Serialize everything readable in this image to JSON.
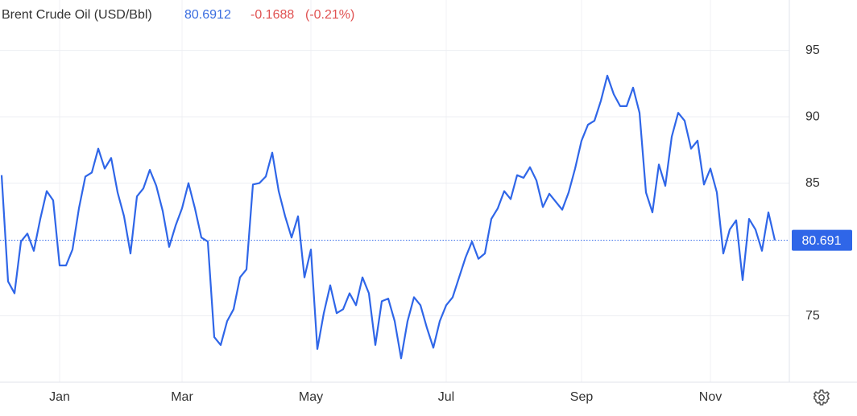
{
  "chart_data": {
    "type": "line",
    "title": "Brent Crude Oil (USD/Bbl)",
    "price": 80.6912,
    "change": -0.1688,
    "change_percent": "(-0.21%)",
    "current": 80.691,
    "categories": [
      null,
      null,
      null,
      null,
      null,
      null,
      null,
      null,
      null,
      "Jan",
      null,
      null,
      null,
      null,
      null,
      null,
      null,
      null,
      null,
      null,
      null,
      null,
      null,
      null,
      null,
      null,
      null,
      null,
      "Mar",
      null,
      null,
      null,
      null,
      null,
      null,
      null,
      null,
      null,
      null,
      null,
      null,
      null,
      null,
      null,
      null,
      null,
      null,
      null,
      "May",
      null,
      null,
      null,
      null,
      null,
      null,
      null,
      null,
      null,
      null,
      null,
      null,
      null,
      null,
      null,
      null,
      null,
      null,
      null,
      null,
      "Jul",
      null,
      null,
      null,
      null,
      null,
      null,
      null,
      null,
      null,
      null,
      null,
      null,
      null,
      null,
      null,
      null,
      null,
      null,
      null,
      null,
      "Sep",
      null,
      null,
      null,
      null,
      null,
      null,
      null,
      null,
      null,
      null,
      null,
      null,
      null,
      null,
      null,
      null,
      null,
      null,
      null,
      "Nov",
      null,
      null,
      null,
      null,
      null,
      null,
      null,
      null,
      null,
      null
    ],
    "series": [
      {
        "name": "Brent Crude Oil",
        "color": "#2f66e8",
        "values": [
          85.6,
          77.6,
          76.7,
          80.6,
          81.2,
          79.9,
          82.3,
          84.4,
          83.7,
          78.8,
          78.8,
          80.0,
          83.1,
          85.5,
          85.8,
          87.6,
          86.1,
          86.9,
          84.3,
          82.5,
          79.7,
          84.0,
          84.6,
          86.0,
          84.8,
          82.9,
          80.2,
          81.8,
          83.1,
          85.0,
          83.1,
          80.9,
          80.6,
          73.4,
          72.8,
          74.6,
          75.5,
          77.9,
          78.5,
          84.9,
          85.0,
          85.5,
          87.3,
          84.4,
          82.5,
          80.9,
          82.5,
          77.9,
          80.0,
          72.5,
          75.2,
          77.3,
          75.2,
          75.5,
          76.7,
          75.8,
          77.9,
          76.7,
          72.8,
          76.1,
          76.3,
          74.6,
          71.8,
          74.6,
          76.4,
          75.8,
          74.1,
          72.6,
          74.6,
          75.8,
          76.4,
          77.9,
          79.4,
          80.6,
          79.3,
          79.7,
          82.3,
          83.1,
          84.4,
          83.8,
          85.6,
          85.4,
          86.2,
          85.2,
          83.2,
          84.2,
          83.6,
          83.0,
          84.3,
          86.1,
          88.2,
          89.4,
          89.7,
          91.2,
          93.1,
          91.7,
          90.8,
          90.8,
          92.2,
          90.3,
          84.3,
          82.8,
          86.4,
          84.8,
          88.5,
          90.3,
          89.7,
          87.6,
          88.2,
          84.9,
          86.1,
          84.3,
          79.7,
          81.5,
          82.2,
          77.7,
          82.3,
          81.5,
          79.9,
          82.8,
          80.7
        ]
      }
    ],
    "ylim": [
      70,
      98.8
    ],
    "yticks": [
      75,
      85,
      90,
      95
    ],
    "grid": true
  }
}
